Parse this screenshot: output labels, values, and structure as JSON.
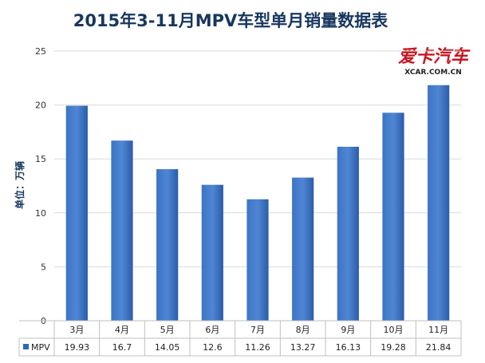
{
  "chart_data": {
    "type": "bar",
    "title": "2015年3-11月MPV车型单月销量数据表",
    "ylabel": "单位：万辆",
    "xlabel": "",
    "categories": [
      "3月",
      "4月",
      "5月",
      "6月",
      "7月",
      "8月",
      "9月",
      "10月",
      "11月"
    ],
    "series": [
      {
        "name": "MPV",
        "values": [
          19.93,
          16.7,
          14.05,
          12.6,
          11.26,
          13.27,
          16.13,
          19.28,
          21.84
        ]
      }
    ],
    "ylim": [
      0,
      25
    ],
    "yticks": [
      "0",
      "5",
      "10",
      "15",
      "20",
      "25"
    ],
    "grid": true,
    "data_table": true,
    "value_labels": [
      "19.93",
      "16.7",
      "14.05",
      "12.6",
      "11.26",
      "13.27",
      "16.13",
      "19.28",
      "21.84"
    ],
    "bar_color": "#2e68b8",
    "bar_color_light": "#4f86d4"
  },
  "watermark": {
    "logo_text": "爱卡汽车",
    "site": "XCAR.COM.CN",
    "color": "#c8141e"
  }
}
